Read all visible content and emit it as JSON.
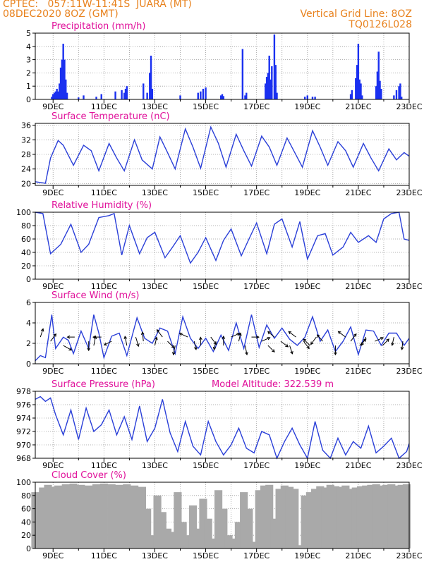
{
  "header": {
    "line1_left": "CPTEC:   057:11W-11:41S  JUARA (MT)",
    "line2_left": "08DEC2020 8OZ (GMT)",
    "line2_right": "Vertical Grid Line: 8OZ",
    "line3_right": "TQ0126L028"
  },
  "colors": {
    "line": "#2a3fd8",
    "bar": "#1a30f0",
    "cloud": "#a9a9a9",
    "title": "#e0109a",
    "header": "#e8821e",
    "wind_arrow": "#000000"
  },
  "dates": [
    "9DEC",
    "11DEC",
    "13DEC",
    "15DEC",
    "17DEC",
    "19DEC",
    "21DEC",
    "23DEC"
  ],
  "chart_data": [
    {
      "type": "bar",
      "title": "Precipitation (mm/h)",
      "ylim": [
        0,
        5
      ],
      "yticks": [
        0,
        1,
        2,
        3,
        4,
        5
      ],
      "x_day_range": [
        8.3,
        23.0
      ],
      "x": [
        8.95,
        9.0,
        9.05,
        9.1,
        9.15,
        9.2,
        9.25,
        9.3,
        9.35,
        9.4,
        9.45,
        9.5,
        9.55,
        10.0,
        10.2,
        10.7,
        10.9,
        11.45,
        11.7,
        11.8,
        11.85,
        11.9,
        12.55,
        12.7,
        12.8,
        12.85,
        12.9,
        14.0,
        14.7,
        14.8,
        14.9,
        15.0,
        15.6,
        15.65,
        15.7,
        16.45,
        16.55,
        16.6,
        17.35,
        17.4,
        17.45,
        17.5,
        17.55,
        17.6,
        17.7,
        17.75,
        17.8,
        18.9,
        19.0,
        19.2,
        19.3,
        20.7,
        20.75,
        20.9,
        20.95,
        21.0,
        21.05,
        21.1,
        21.15,
        21.7,
        21.75,
        21.8,
        21.85,
        21.9,
        22.4,
        22.5,
        22.6,
        22.65,
        22.7
      ],
      "values": [
        0.2,
        0.4,
        0.5,
        0.6,
        0.8,
        0.6,
        1.2,
        2.4,
        3.0,
        4.2,
        3.0,
        1.5,
        0.5,
        0.15,
        0.3,
        0.2,
        0.4,
        0.6,
        0.7,
        0.5,
        0.8,
        1.0,
        1.2,
        0.5,
        2.0,
        3.3,
        0.8,
        0.3,
        0.5,
        0.6,
        0.8,
        0.9,
        0.3,
        0.4,
        0.25,
        3.8,
        0.3,
        0.5,
        1.2,
        1.7,
        2.0,
        3.3,
        1.5,
        2.5,
        4.9,
        2.6,
        0.5,
        0.2,
        0.3,
        0.2,
        0.2,
        0.4,
        0.7,
        1.6,
        2.6,
        4.2,
        1.5,
        1.2,
        0.3,
        1.0,
        2.1,
        3.6,
        1.4,
        0.8,
        0.3,
        0.7,
        1.0,
        1.2,
        0.2
      ]
    },
    {
      "type": "line",
      "title": "Surface Temperature (nC)",
      "ylim": [
        19.5,
        36.5
      ],
      "yticks": [
        20,
        24,
        28,
        32,
        36
      ],
      "x_day_range": [
        8.3,
        23.0
      ],
      "x": [
        8.3,
        8.7,
        8.9,
        9.2,
        9.4,
        9.8,
        10.2,
        10.5,
        10.8,
        11.2,
        11.5,
        11.8,
        12.2,
        12.5,
        12.9,
        13.2,
        13.5,
        13.8,
        14.2,
        14.5,
        14.8,
        15.2,
        15.5,
        15.8,
        16.2,
        16.5,
        16.8,
        17.2,
        17.5,
        17.8,
        18.2,
        18.5,
        18.8,
        19.2,
        19.5,
        19.8,
        20.2,
        20.5,
        20.8,
        21.2,
        21.5,
        21.8,
        22.2,
        22.5,
        22.8,
        23.0
      ],
      "values": [
        20.5,
        20.1,
        27.0,
        31.8,
        30.5,
        25.0,
        30.5,
        29.0,
        23.5,
        31.0,
        27.0,
        23.5,
        32.0,
        26.5,
        24.0,
        32.8,
        28.5,
        24.0,
        35.0,
        30.0,
        24.2,
        35.5,
        31.0,
        24.5,
        33.5,
        29.0,
        24.8,
        33.0,
        30.0,
        25.0,
        32.5,
        28.5,
        24.5,
        34.5,
        30.0,
        25.0,
        31.5,
        29.0,
        24.5,
        31.0,
        27.0,
        23.5,
        29.5,
        26.5,
        28.5,
        27.5
      ]
    },
    {
      "type": "line",
      "title": "Relative Humidity (%)",
      "ylim": [
        0,
        100
      ],
      "yticks": [
        0,
        20,
        40,
        60,
        80,
        100
      ],
      "x_day_range": [
        8.3,
        23.0
      ],
      "x": [
        8.3,
        8.6,
        8.9,
        9.3,
        9.7,
        10.1,
        10.4,
        10.8,
        11.2,
        11.4,
        11.7,
        12.0,
        12.4,
        12.7,
        13.0,
        13.4,
        13.7,
        14.0,
        14.4,
        14.7,
        15.0,
        15.4,
        15.7,
        16.0,
        16.4,
        16.7,
        17.0,
        17.4,
        17.7,
        18.0,
        18.4,
        18.7,
        19.0,
        19.4,
        19.7,
        20.0,
        20.4,
        20.7,
        21.0,
        21.4,
        21.7,
        22.0,
        22.3,
        22.6,
        22.8,
        23.0
      ],
      "values": [
        100,
        98,
        38,
        52,
        82,
        40,
        52,
        92,
        95,
        98,
        36,
        80,
        38,
        62,
        70,
        32,
        48,
        65,
        24,
        40,
        62,
        28,
        58,
        75,
        35,
        60,
        84,
        38,
        82,
        90,
        48,
        86,
        30,
        65,
        68,
        36,
        48,
        70,
        55,
        65,
        55,
        90,
        98,
        100,
        60,
        58
      ]
    },
    {
      "type": "line",
      "title": "Surface Wind (m/s)",
      "ylim": [
        0,
        6
      ],
      "yticks": [
        0,
        2,
        4,
        6
      ],
      "x_day_range": [
        8.3,
        23.0
      ],
      "x": [
        8.3,
        8.5,
        8.7,
        8.95,
        9.1,
        9.4,
        9.6,
        9.8,
        10.1,
        10.4,
        10.6,
        10.8,
        11.0,
        11.3,
        11.6,
        11.9,
        12.3,
        12.6,
        12.9,
        13.2,
        13.5,
        13.8,
        14.1,
        14.4,
        14.7,
        15.0,
        15.3,
        15.6,
        15.9,
        16.2,
        16.5,
        16.8,
        17.1,
        17.4,
        17.7,
        18.0,
        18.3,
        18.6,
        18.9,
        19.2,
        19.5,
        19.8,
        20.1,
        20.4,
        20.7,
        21.0,
        21.3,
        21.6,
        21.9,
        22.2,
        22.5,
        22.8,
        23.0
      ],
      "values": [
        0.3,
        0.8,
        0.6,
        4.8,
        1.5,
        2.6,
        2.3,
        1.0,
        3.2,
        1.5,
        4.8,
        3.0,
        0.6,
        2.7,
        3.0,
        0.8,
        4.5,
        2.5,
        2.0,
        3.5,
        3.2,
        1.0,
        4.6,
        2.5,
        1.5,
        2.5,
        1.2,
        2.8,
        1.3,
        4.0,
        1.5,
        4.8,
        1.6,
        3.8,
        2.5,
        3.5,
        2.4,
        1.8,
        2.6,
        4.6,
        2.2,
        3.3,
        1.2,
        2.2,
        3.6,
        0.9,
        3.3,
        3.2,
        1.8,
        3.0,
        3.0,
        1.8,
        2.5
      ]
    },
    {
      "type": "line",
      "title": "Surface Pressure (hPa)",
      "annotation": "Model Altitude: 322.539  m",
      "ylim": [
        968,
        978
      ],
      "yticks": [
        968,
        970,
        972,
        974,
        976,
        978
      ],
      "x_day_range": [
        8.3,
        23.0
      ],
      "x": [
        8.3,
        8.5,
        8.7,
        8.9,
        9.1,
        9.4,
        9.7,
        10.0,
        10.3,
        10.6,
        10.9,
        11.2,
        11.5,
        11.8,
        12.1,
        12.4,
        12.7,
        13.0,
        13.3,
        13.6,
        13.9,
        14.2,
        14.5,
        14.8,
        15.1,
        15.4,
        15.7,
        16.0,
        16.3,
        16.6,
        16.9,
        17.2,
        17.5,
        17.8,
        18.1,
        18.4,
        18.7,
        19.0,
        19.3,
        19.6,
        19.9,
        20.2,
        20.5,
        20.8,
        21.1,
        21.4,
        21.7,
        22.0,
        22.3,
        22.6,
        22.9,
        23.0
      ],
      "values": [
        976.8,
        977.2,
        976.5,
        977.0,
        974.5,
        971.5,
        975.2,
        970.8,
        975.5,
        972.0,
        973.0,
        975.2,
        971.5,
        974.2,
        970.8,
        975.8,
        970.5,
        972.5,
        976.8,
        971.8,
        969.0,
        973.5,
        969.8,
        968.5,
        973.5,
        970.5,
        968.5,
        970.0,
        972.5,
        969.5,
        968.8,
        972.0,
        971.5,
        968.0,
        970.5,
        972.5,
        970.0,
        968.0,
        973.5,
        969.2,
        968.0,
        971.0,
        968.5,
        970.5,
        969.5,
        972.8,
        968.8,
        969.8,
        971.0,
        968.0,
        969.0,
        970.2
      ]
    },
    {
      "type": "bar",
      "title": "Cloud Cover (%)",
      "ylim": [
        0,
        100
      ],
      "yticks": [
        0,
        20,
        40,
        60,
        80,
        100
      ],
      "x_day_range": [
        8.3,
        23.0
      ],
      "x": [
        8.3,
        8.6,
        8.8,
        9.0,
        9.2,
        9.5,
        9.8,
        10.1,
        10.4,
        10.7,
        11.0,
        11.3,
        11.6,
        11.9,
        12.2,
        12.5,
        12.7,
        12.9,
        13.1,
        13.3,
        13.5,
        13.7,
        13.9,
        14.1,
        14.3,
        14.5,
        14.7,
        14.9,
        15.1,
        15.3,
        15.5,
        15.7,
        15.9,
        16.1,
        16.3,
        16.5,
        16.7,
        16.9,
        17.1,
        17.3,
        17.5,
        17.7,
        17.9,
        18.1,
        18.3,
        18.5,
        18.7,
        18.9,
        19.1,
        19.3,
        19.5,
        19.7,
        19.9,
        20.1,
        20.3,
        20.5,
        20.7,
        20.9,
        21.1,
        21.3,
        21.5,
        21.7,
        21.9,
        22.1,
        22.3,
        22.5,
        22.7,
        22.9
      ],
      "values": [
        85,
        92,
        96,
        93,
        95,
        97,
        98,
        96,
        95,
        97,
        98,
        97,
        96,
        97,
        95,
        93,
        60,
        20,
        80,
        55,
        30,
        25,
        85,
        40,
        20,
        65,
        30,
        75,
        45,
        15,
        88,
        60,
        20,
        15,
        40,
        85,
        60,
        10,
        88,
        95,
        96,
        45,
        90,
        95,
        93,
        90,
        5,
        80,
        85,
        90,
        94,
        92,
        96,
        94,
        93,
        95,
        90,
        92,
        94,
        95,
        96,
        97,
        95,
        96,
        97,
        95,
        96,
        97
      ]
    }
  ],
  "wind_vectors": {
    "x": [
      8.5,
      8.9,
      9.4,
      9.85,
      10.4,
      10.6,
      10.9,
      11.3,
      11.9,
      12.25,
      12.55,
      13.0,
      13.3,
      13.5,
      13.8,
      14.3,
      14.55,
      14.8,
      15.2,
      15.4,
      15.7,
      16.0,
      16.3,
      16.55,
      16.8,
      17.2,
      17.45,
      17.7,
      17.95,
      18.3,
      18.55,
      18.85,
      19.1,
      19.35,
      19.6,
      20.1,
      20.5,
      20.7,
      21.05,
      21.3,
      21.65,
      21.95,
      22.4,
      22.75
    ],
    "u": [
      0.3,
      0.6,
      0.9,
      -0.8,
      0.0,
      0.2,
      -0.9,
      -0.8,
      -0.2,
      0.3,
      -0.1,
      0.2,
      -0.6,
      0.7,
      -0.2,
      -0.9,
      0.2,
      0.0,
      0.6,
      -0.2,
      0.0,
      0.9,
      0.2,
      0.2,
      0.8,
      0.9,
      0.7,
      -0.7,
      0.8,
      0.3,
      -0.8,
      0.6,
      -0.7,
      -0.6,
      -0.6,
      0.0,
      -0.8,
      0.6,
      0.7,
      -0.5,
      0.9,
      0.7,
      -0.2,
      -0.1
    ],
    "v": [
      0.9,
      0.8,
      -0.5,
      0.0,
      -1.0,
      1.0,
      0.0,
      -0.4,
      1.0,
      -1.0,
      1.0,
      0.9,
      0.8,
      -0.7,
      -1.0,
      0.4,
      -0.9,
      0.9,
      -0.8,
      -0.9,
      1.0,
      0.4,
      0.9,
      -1.0,
      0.0,
      0.4,
      -0.7,
      0.6,
      -0.6,
      -0.9,
      0.6,
      -0.8,
      0.7,
      -0.8,
      0.7,
      -1.0,
      0.6,
      0.8,
      0.7,
      -0.9,
      0.4,
      0.7,
      -0.9,
      -0.9
    ]
  }
}
